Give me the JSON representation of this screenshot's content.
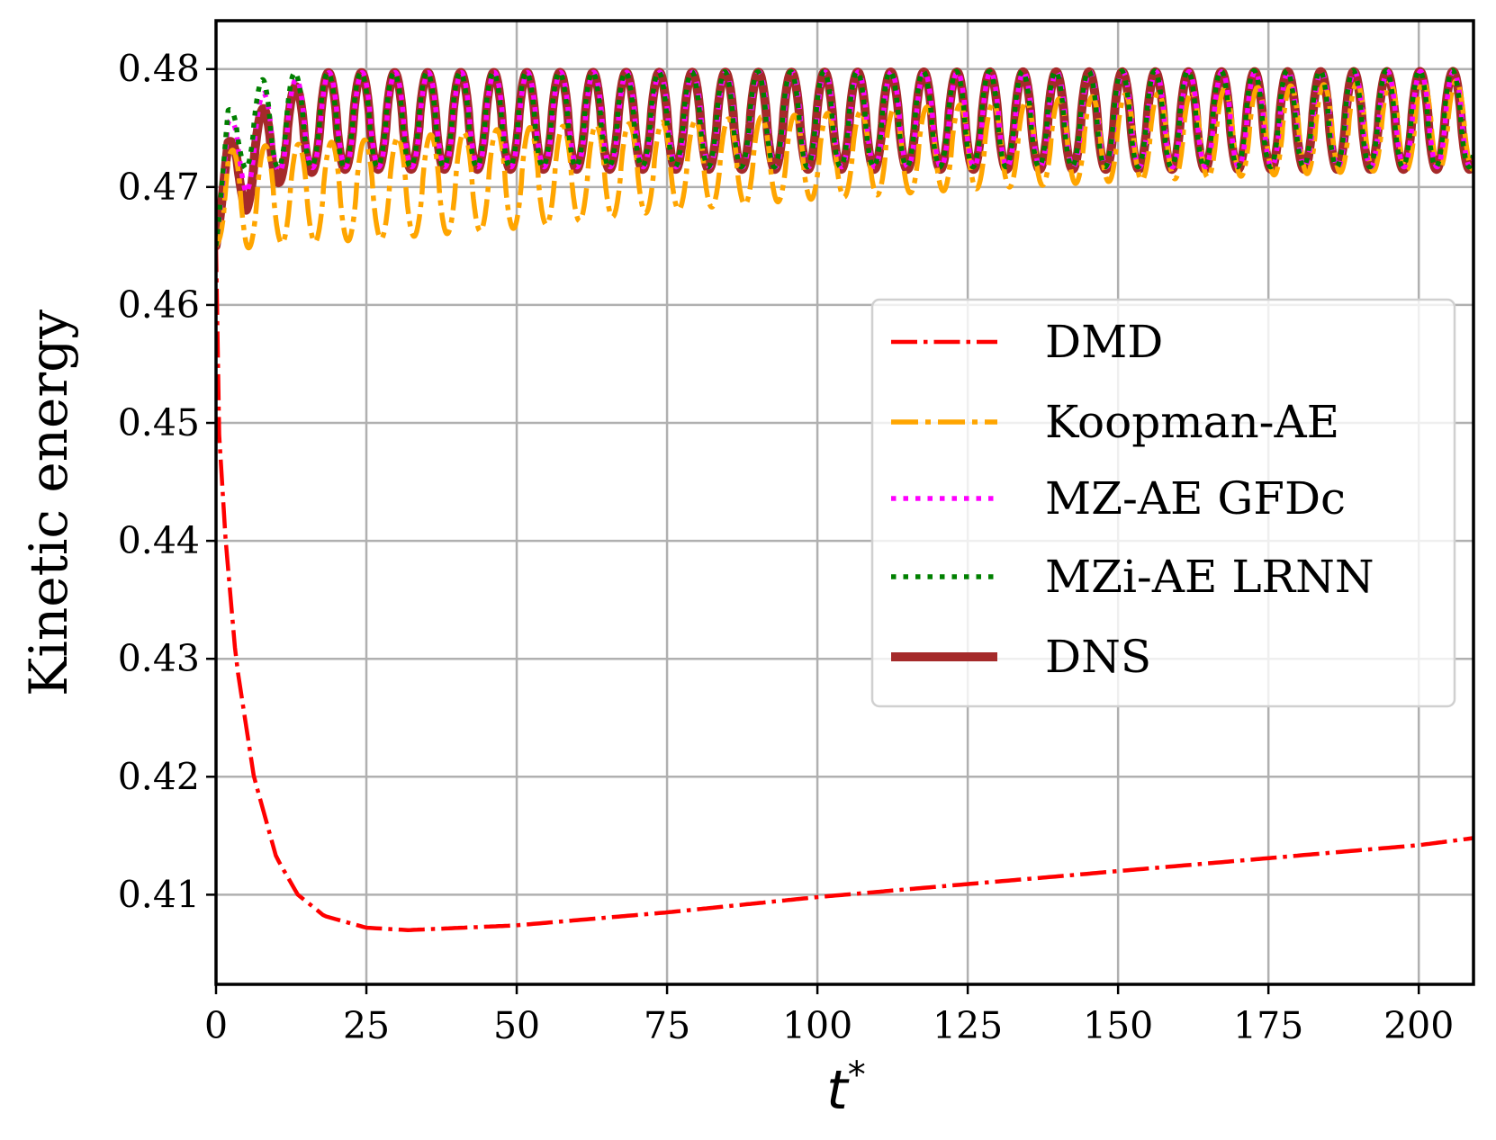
{
  "chart_data": {
    "type": "line",
    "xlabel": "t",
    "xlabel_superscript": "*",
    "ylabel": "Kinetic energy",
    "xlim": [
      0,
      209.1
    ],
    "ylim": [
      0.4024,
      0.4841
    ],
    "xticks": [
      0,
      25,
      50,
      75,
      100,
      125,
      150,
      175,
      200
    ],
    "xtick_labels": [
      "0",
      "25",
      "50",
      "75",
      "100",
      "125",
      "150",
      "175",
      "200"
    ],
    "yticks": [
      0.41,
      0.42,
      0.43,
      0.44,
      0.45,
      0.46,
      0.47,
      0.48
    ],
    "ytick_labels": [
      "0.41",
      "0.42",
      "0.43",
      "0.44",
      "0.45",
      "0.46",
      "0.47",
      "0.48"
    ],
    "grid": true,
    "legend_position": "center-right",
    "series": [
      {
        "name": "DMD",
        "color": "#ff0000",
        "linestyle": "dashdot",
        "x": [
          0,
          0.25,
          0.4,
          1.6,
          3.3,
          6.3,
          10,
          13.6,
          18,
          25,
          32,
          50,
          75,
          100,
          125,
          150,
          175,
          200,
          209.1
        ],
        "y": [
          0.465,
          0.46,
          0.45,
          0.44,
          0.43,
          0.42,
          0.4132,
          0.41,
          0.4082,
          0.4072,
          0.407,
          0.4074,
          0.4085,
          0.4098,
          0.4109,
          0.412,
          0.4131,
          0.4142,
          0.4148
        ]
      },
      {
        "name": "Koopman-AE",
        "color": "#ffa500",
        "linestyle": "dashdot",
        "oscillation": {
          "period": 5.5,
          "first_peak_t": 19.2,
          "envelope_t": [
            0,
            2,
            5,
            10,
            25,
            50,
            75,
            100,
            125,
            150,
            175,
            200,
            209.1
          ],
          "envelope_max": [
            0.465,
            0.473,
            0.4735,
            0.4735,
            0.474,
            0.475,
            0.4755,
            0.4762,
            0.477,
            0.4778,
            0.4785,
            0.479,
            0.479
          ],
          "envelope_min": [
            0.465,
            0.4665,
            0.4648,
            0.4652,
            0.4655,
            0.4665,
            0.468,
            0.469,
            0.4698,
            0.4705,
            0.471,
            0.4715,
            0.4715
          ]
        }
      },
      {
        "name": "MZ-AE GFDc",
        "color": "#ff00ff",
        "linestyle": "dotted",
        "oscillation": {
          "period": 5.5,
          "first_peak_t": 18.8,
          "envelope_t": [
            0,
            2,
            5,
            8,
            12,
            18,
            209.1
          ],
          "envelope_max": [
            0.465,
            0.4755,
            0.4765,
            0.478,
            0.479,
            0.4797,
            0.4798
          ],
          "envelope_min": [
            0.465,
            0.4725,
            0.4695,
            0.471,
            0.4715,
            0.4717,
            0.4717
          ]
        }
      },
      {
        "name": "MZi-AE LRNN",
        "color": "#008000",
        "linestyle": "dotted",
        "oscillation": {
          "period": 5.5,
          "first_peak_t": 18.6,
          "envelope_t": [
            0,
            2,
            5,
            8,
            12,
            18,
            209.1
          ],
          "envelope_max": [
            0.465,
            0.4765,
            0.4775,
            0.4793,
            0.4797,
            0.4797,
            0.4799
          ],
          "envelope_min": [
            0.465,
            0.4735,
            0.4715,
            0.4715,
            0.4717,
            0.4717,
            0.4717
          ]
        }
      },
      {
        "name": "DNS",
        "color": "#a52a2a",
        "linestyle": "solid",
        "oscillation": {
          "period": 5.5,
          "first_peak_t": 18.7,
          "envelope_t": [
            0,
            2,
            5,
            8,
            11,
            14,
            18,
            209.1
          ],
          "envelope_max": [
            0.465,
            0.4738,
            0.4745,
            0.4768,
            0.478,
            0.4787,
            0.4797,
            0.4798
          ],
          "envelope_min": [
            0.465,
            0.4715,
            0.468,
            0.4698,
            0.4705,
            0.471,
            0.4715,
            0.4715
          ]
        }
      }
    ]
  }
}
